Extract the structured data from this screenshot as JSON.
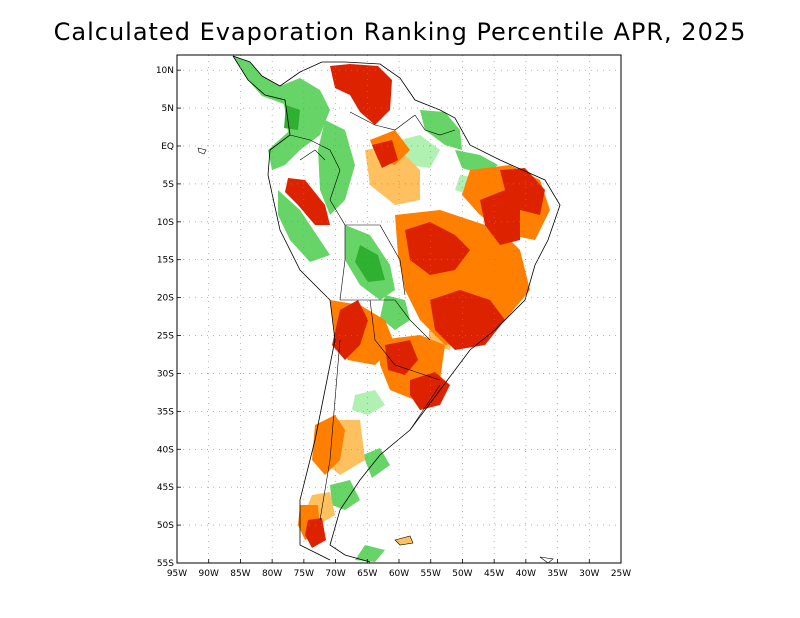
{
  "title": "Calculated Evaporation Ranking Percentile APR, 2025",
  "map": {
    "lon_range": [
      -95,
      -25
    ],
    "lat_range": [
      -55,
      12
    ],
    "y_ticks": [
      "10N",
      "5N",
      "EQ",
      "5S",
      "10S",
      "15S",
      "20S",
      "25S",
      "30S",
      "35S",
      "40S",
      "45S",
      "50S",
      "55S"
    ],
    "y_tick_values": [
      10,
      5,
      0,
      -5,
      -10,
      -15,
      -20,
      -25,
      -30,
      -35,
      -40,
      -45,
      -50,
      -55
    ],
    "x_ticks": [
      "95W",
      "90W",
      "85W",
      "80W",
      "75W",
      "70W",
      "65W",
      "60W",
      "55W",
      "50W",
      "45W",
      "40W",
      "35W",
      "30W",
      "25W"
    ],
    "x_tick_values": [
      -95,
      -90,
      -85,
      -80,
      -75,
      -70,
      -65,
      -60,
      -55,
      -50,
      -45,
      -40,
      -35,
      -30,
      -25
    ],
    "grid": "dotted",
    "colors": {
      "very_low": "#dd2200",
      "low": "#ff7f00",
      "mod_low": "#ffc060",
      "neutral": "#ffffff",
      "mod_high": "#b0f0b0",
      "high": "#66d466",
      "very_high": "#30b030",
      "border": "#000000"
    }
  }
}
